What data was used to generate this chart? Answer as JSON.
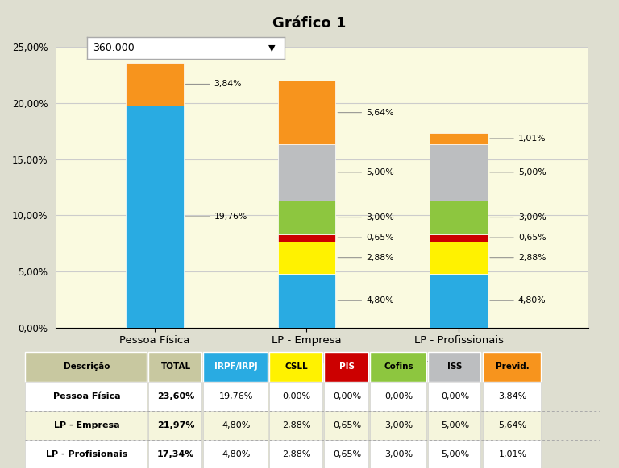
{
  "title": "Gráfico 1",
  "background_color": "#FAFAE0",
  "outer_background": "#DEDED0",
  "categories": [
    "Pessoa Física",
    "LP - Empresa",
    "LP - Profissionais"
  ],
  "segments": {
    "IR": [
      19.76,
      4.8,
      4.8
    ],
    "CSLL": [
      0.0,
      2.88,
      2.88
    ],
    "PIS": [
      0.0,
      0.65,
      0.65
    ],
    "Cofins": [
      0.0,
      3.0,
      3.0
    ],
    "ISS": [
      0.0,
      5.0,
      5.0
    ],
    "Previd. Prof.": [
      3.84,
      5.64,
      1.01
    ]
  },
  "colors": {
    "IR": "#29ABE2",
    "CSLL": "#FFF200",
    "PIS": "#CC0000",
    "Cofins": "#8DC63F",
    "ISS": "#BCBEC0",
    "Previd. Prof.": "#F7941D"
  },
  "bar_labels": {
    "Pessoa Física": {
      "IR": "19,76%",
      "Previd. Prof.": "3,84%"
    },
    "LP - Empresa": {
      "IR": "4,80%",
      "CSLL": "2,88%",
      "PIS": "0,65%",
      "Cofins": "3,00%",
      "ISS": "5,00%",
      "Previd. Prof.": "5,64%"
    },
    "LP - Profissionais": {
      "IR": "4,80%",
      "CSLL": "2,88%",
      "PIS": "0,65%",
      "Cofins": "3,00%",
      "ISS": "5,00%",
      "Previd. Prof.": "1,01%"
    }
  },
  "ylim": [
    0,
    25
  ],
  "yticks": [
    0,
    5,
    10,
    15,
    20,
    25
  ],
  "ytick_labels": [
    "0,00%",
    "5,00%",
    "10,00%",
    "15,00%",
    "20,00%",
    "25,00%"
  ],
  "dropdown_text": "360.000",
  "table": {
    "headers": [
      "Descrição",
      "TOTAL",
      "IRPF/IRPJ",
      "CSLL",
      "PIS",
      "Cofins",
      "ISS",
      "Previd."
    ],
    "header_bg_colors": [
      "#C8C8A0",
      "#C8C8A0",
      "#29ABE2",
      "#FFF200",
      "#CC0000",
      "#8DC63F",
      "#BCBEC0",
      "#F7941D"
    ],
    "header_txt_colors": [
      "black",
      "black",
      "white",
      "black",
      "white",
      "black",
      "black",
      "black"
    ],
    "rows": [
      [
        "Pessoa Física",
        "23,60%",
        "19,76%",
        "0,00%",
        "0,00%",
        "0,00%",
        "0,00%",
        "3,84%"
      ],
      [
        "LP - Empresa",
        "21,97%",
        "4,80%",
        "2,88%",
        "0,65%",
        "3,00%",
        "5,00%",
        "5,64%"
      ],
      [
        "LP - Profisionais",
        "17,34%",
        "4,80%",
        "2,88%",
        "0,65%",
        "3,00%",
        "5,00%",
        "1,01%"
      ]
    ]
  },
  "legend_order": [
    "IR",
    "CSLL",
    "PIS",
    "Cofins",
    "ISS",
    "Previd. Prof."
  ]
}
